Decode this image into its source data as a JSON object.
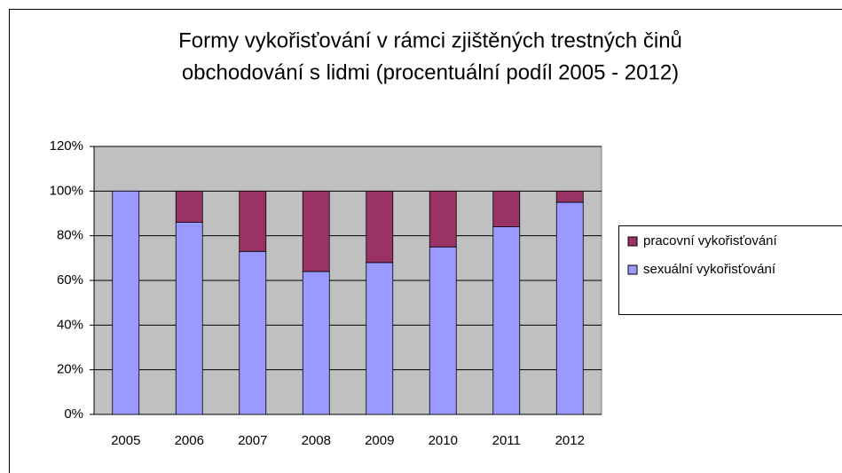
{
  "chart_data": {
    "type": "stacked_bar",
    "title": [
      "Formy vykořisťování v rámci zjištěných trestných činů",
      "obchodování s lidmi (procentuální podíl 2005 - 2012)"
    ],
    "categories": [
      "2005",
      "2006",
      "2007",
      "2008",
      "2009",
      "2010",
      "2011",
      "2012"
    ],
    "series": [
      {
        "name": "sexuální vykořisťování",
        "color": "#9999ff",
        "values": [
          100,
          86,
          73,
          64,
          68,
          75,
          84,
          95
        ]
      },
      {
        "name": "pracovní vykořisťování",
        "color": "#993366",
        "values": [
          0,
          14,
          27,
          36,
          32,
          25,
          16,
          5
        ]
      }
    ],
    "ylim": [
      0,
      120
    ],
    "yticks": [
      {
        "value": 0,
        "label": "0%"
      },
      {
        "value": 20,
        "label": "20%"
      },
      {
        "value": 40,
        "label": "40%"
      },
      {
        "value": 60,
        "label": "60%"
      },
      {
        "value": 80,
        "label": "80%"
      },
      {
        "value": 100,
        "label": "100%"
      },
      {
        "value": 120,
        "label": "120%"
      }
    ],
    "grid": true,
    "legend": "right",
    "plot_background": "#c0c0c0"
  }
}
